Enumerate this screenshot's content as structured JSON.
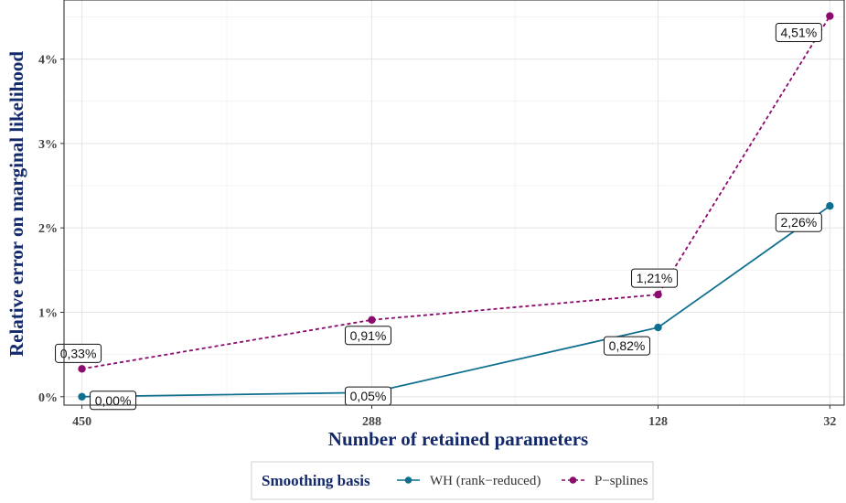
{
  "chart_data": {
    "type": "line",
    "xlabel": "Number of retained parameters",
    "ylabel": "Relative error on marginal likelihood",
    "categories": [
      "450",
      "288",
      "128",
      "32"
    ],
    "y_ticks": [
      "0%",
      "1%",
      "2%",
      "3%",
      "4%"
    ],
    "ylim": [
      -0.1,
      4.7
    ],
    "grid": true,
    "legend": {
      "title": "Smoothing basis",
      "position": "bottom"
    },
    "series": [
      {
        "name": "WH (rank−reduced)",
        "color": "#0e6f8e",
        "line_style": "solid",
        "values": [
          0.0,
          0.05,
          0.82,
          2.26
        ],
        "labels": [
          "0,00%",
          "0,05%",
          "0,82%",
          "2,26%"
        ]
      },
      {
        "name": "P−splines",
        "color": "#8b0a6e",
        "line_style": "dashed",
        "values": [
          0.33,
          0.91,
          1.21,
          4.51
        ],
        "labels": [
          "0,33%",
          "0,91%",
          "1,21%",
          "4,51%"
        ]
      }
    ]
  },
  "colors": {
    "axis_title": "#13296b",
    "grid_major": "#e6e6e6",
    "grid_minor": "#f3f3f3",
    "panel_border": "#333333"
  }
}
